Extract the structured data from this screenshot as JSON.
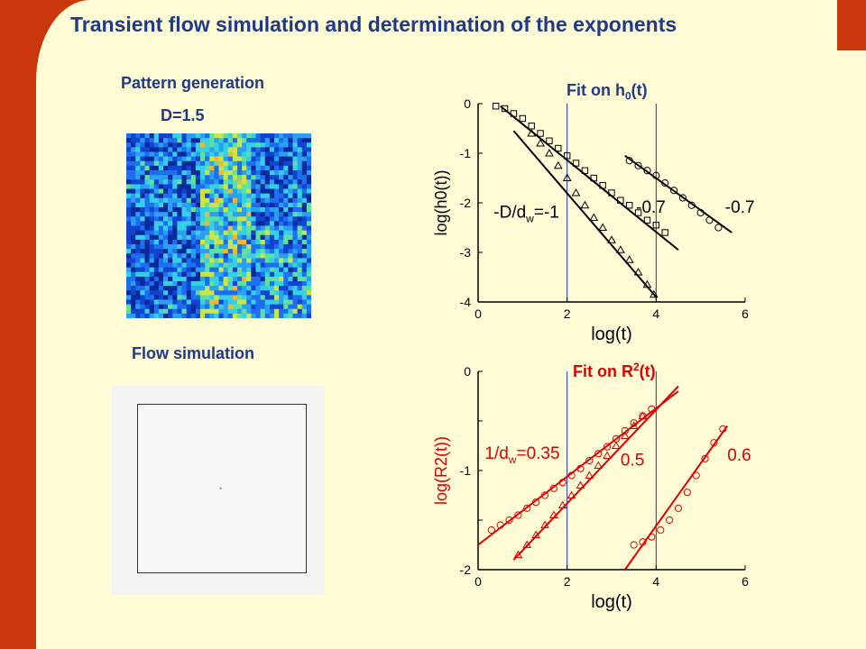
{
  "title": "Transient flow simulation and determination of the exponents",
  "pattern": {
    "heading": "Pattern generation",
    "dimension": "D=1.5"
  },
  "flow": {
    "heading": "Flow simulation"
  },
  "colors": {
    "accent_bar": "#c8380a",
    "background": "#fffcd6",
    "title_text": "#1f3a86",
    "chart_top": "#000000",
    "chart_bottom": "#dd0000",
    "vlines": "#1f2fa8"
  },
  "chart_data": [
    {
      "type": "scatter",
      "title": "Fit on h0(t)",
      "title_main": "Fit on h",
      "title_sub": "0",
      "title_tail": "(t)",
      "xlabel": "log(t)",
      "ylabel": "log(h0(t))",
      "xlim": [
        0,
        6
      ],
      "ylim": [
        -4,
        0
      ],
      "xticks": [
        "0",
        "2",
        "4",
        "6"
      ],
      "yticks": [
        "0",
        "-1",
        "-2",
        "-3",
        "-4"
      ],
      "vlines": [
        2,
        4
      ],
      "series": [
        {
          "marker": "triangle",
          "x": [
            1.2,
            1.4,
            1.6,
            1.8,
            2.0,
            2.2,
            2.4,
            2.6,
            2.8,
            3.0,
            3.2,
            3.4,
            3.6,
            3.8,
            3.95
          ],
          "y": [
            -0.6,
            -0.8,
            -1.0,
            -1.25,
            -1.5,
            -1.8,
            -2.05,
            -2.3,
            -2.5,
            -2.75,
            -2.95,
            -3.15,
            -3.4,
            -3.65,
            -3.85
          ],
          "fit": [
            [
              0.8,
              -0.55
            ],
            [
              4.0,
              -3.9
            ]
          ]
        },
        {
          "marker": "square",
          "x": [
            0.4,
            0.6,
            0.8,
            1.0,
            1.2,
            1.4,
            1.6,
            1.8,
            2.0,
            2.2,
            2.4,
            2.6,
            2.8,
            3.0,
            3.2,
            3.4,
            3.6,
            3.8,
            4.0,
            4.2
          ],
          "y": [
            -0.05,
            -0.1,
            -0.2,
            -0.3,
            -0.45,
            -0.6,
            -0.75,
            -0.9,
            -1.05,
            -1.2,
            -1.35,
            -1.5,
            -1.65,
            -1.8,
            -1.95,
            -2.05,
            -2.2,
            -2.35,
            -2.45,
            -2.6
          ],
          "fit": [
            [
              0.5,
              -0.05
            ],
            [
              4.5,
              -2.95
            ]
          ]
        },
        {
          "marker": "circle",
          "x": [
            3.4,
            3.6,
            3.8,
            4.0,
            4.2,
            4.4,
            4.6,
            4.8,
            5.0,
            5.2,
            5.4
          ],
          "y": [
            -1.15,
            -1.25,
            -1.35,
            -1.45,
            -1.6,
            -1.75,
            -1.9,
            -2.05,
            -2.2,
            -2.35,
            -2.5
          ],
          "fit": [
            [
              3.3,
              -1.05
            ],
            [
              5.7,
              -2.6
            ]
          ]
        }
      ],
      "annotations": [
        {
          "label": "-D/d",
          "sub": "w",
          "tail": "=-1",
          "x": 0.35,
          "y": -2.3
        },
        {
          "label": "-0.7",
          "sub": "",
          "tail": "",
          "x": 3.55,
          "y": -2.2
        },
        {
          "label": "-0.7",
          "sub": "",
          "tail": "",
          "x": 5.55,
          "y": -2.2
        }
      ]
    },
    {
      "type": "scatter",
      "title": "Fit on R2(t)",
      "title_main": "Fit on R",
      "title_sub": "2",
      "title_tail": "(t)",
      "xlabel": "log(t)",
      "ylabel": "log(R2(t))",
      "xlim": [
        0,
        6
      ],
      "ylim": [
        -2,
        0
      ],
      "xticks": [
        "0",
        "2",
        "4",
        "6"
      ],
      "yticks": [
        "0",
        "",
        "-1",
        "",
        "-2"
      ],
      "vlines": [
        2,
        4
      ],
      "series": [
        {
          "marker": "circle",
          "x": [
            0.3,
            0.5,
            0.7,
            0.9,
            1.1,
            1.3,
            1.5,
            1.7,
            1.9,
            2.1,
            2.3,
            2.5,
            2.7,
            2.9,
            3.1,
            3.3,
            3.5,
            3.7,
            3.9
          ],
          "y": [
            -1.6,
            -1.55,
            -1.5,
            -1.45,
            -1.38,
            -1.32,
            -1.25,
            -1.18,
            -1.12,
            -1.05,
            -0.98,
            -0.9,
            -0.83,
            -0.76,
            -0.68,
            -0.6,
            -0.52,
            -0.45,
            -0.38
          ],
          "fit": [
            [
              0.0,
              -1.75
            ],
            [
              4.5,
              -0.2
            ]
          ]
        },
        {
          "marker": "triangle",
          "x": [
            0.9,
            1.1,
            1.3,
            1.5,
            1.7,
            1.9,
            2.1,
            2.3,
            2.5,
            2.7,
            2.9,
            3.1,
            3.3,
            3.5,
            3.7
          ],
          "y": [
            -1.85,
            -1.75,
            -1.65,
            -1.55,
            -1.45,
            -1.35,
            -1.25,
            -1.15,
            -1.05,
            -0.95,
            -0.85,
            -0.75,
            -0.65,
            -0.55,
            -0.45
          ],
          "fit": [
            [
              0.8,
              -1.9
            ],
            [
              4.5,
              -0.15
            ]
          ]
        },
        {
          "marker": "circle",
          "x": [
            3.5,
            3.7,
            3.9,
            4.1,
            4.3,
            4.5,
            4.7,
            4.9,
            5.1,
            5.3,
            5.5
          ],
          "y": [
            -1.75,
            -1.72,
            -1.67,
            -1.6,
            -1.5,
            -1.38,
            -1.22,
            -1.05,
            -0.88,
            -0.72,
            -0.58
          ],
          "fit": [
            [
              3.3,
              -2.0
            ],
            [
              5.6,
              -0.55
            ]
          ]
        }
      ],
      "annotations": [
        {
          "label": "1/d",
          "sub": "w",
          "tail": "=0.35",
          "x": 0.15,
          "y": -0.88
        },
        {
          "label": "0.5",
          "sub": "",
          "tail": "",
          "x": 3.2,
          "y": -0.95
        },
        {
          "label": "0.6",
          "sub": "",
          "tail": "",
          "x": 5.6,
          "y": -0.9
        }
      ]
    }
  ]
}
